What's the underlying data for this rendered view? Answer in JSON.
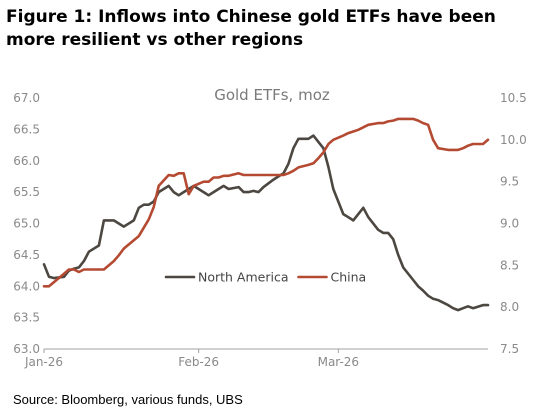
{
  "figure_title": "Figure 1: Inflows into Chinese gold ETFs have been more resilient vs other regions",
  "source": "Source: Bloomberg, various funds, UBS",
  "chart_data": {
    "type": "line",
    "title": "Gold ETFs, moz",
    "x_categories": [
      "Jan-26",
      "Feb-26",
      "Mar-26"
    ],
    "y_left": {
      "min": 63.0,
      "max": 67.0,
      "step": 0.5,
      "ticks": [
        "63.0",
        "63.5",
        "64.0",
        "64.5",
        "65.0",
        "65.5",
        "66.0",
        "66.5",
        "67.0"
      ]
    },
    "y_right": {
      "min": 7.5,
      "max": 10.5,
      "step": 0.5,
      "ticks": [
        "7.5",
        "8.0",
        "8.5",
        "9.0",
        "9.5",
        "10.0",
        "10.5"
      ]
    },
    "grid": false,
    "legend_position": "center-left",
    "series": [
      {
        "name": "North America",
        "color": "#4d4741",
        "axis": "left",
        "x": [
          "Jan-01",
          "Jan-02",
          "Jan-03",
          "Jan-05",
          "Jan-06",
          "Jan-07",
          "Jan-08",
          "Jan-09",
          "Jan-10",
          "Jan-12",
          "Jan-13",
          "Jan-14",
          "Jan-15",
          "Jan-16",
          "Jan-17",
          "Jan-19",
          "Jan-20",
          "Jan-21",
          "Jan-22",
          "Jan-23",
          "Jan-24",
          "Jan-26",
          "Jan-27",
          "Jan-28",
          "Jan-29",
          "Jan-30",
          "Jan-31",
          "Feb-02",
          "Feb-03",
          "Feb-04",
          "Feb-05",
          "Feb-06",
          "Feb-07",
          "Feb-09",
          "Feb-10",
          "Feb-11",
          "Feb-12",
          "Feb-13",
          "Feb-14",
          "Feb-16",
          "Feb-17",
          "Feb-18",
          "Feb-19",
          "Feb-20",
          "Feb-21",
          "Feb-23",
          "Feb-24",
          "Feb-25",
          "Feb-26",
          "Feb-27",
          "Feb-28",
          "Mar-02",
          "Mar-03",
          "Mar-04",
          "Mar-05",
          "Mar-06",
          "Mar-07",
          "Mar-09",
          "Mar-10",
          "Mar-11",
          "Mar-12",
          "Mar-13",
          "Mar-14",
          "Mar-16",
          "Mar-17",
          "Mar-18",
          "Mar-19",
          "Mar-20",
          "Mar-21",
          "Mar-23",
          "Mar-24",
          "Mar-25",
          "Mar-26",
          "Mar-27",
          "Mar-28",
          "Mar-30",
          "Mar-31"
        ],
        "values": [
          64.35,
          64.15,
          64.13,
          64.15,
          64.25,
          64.28,
          64.3,
          64.4,
          64.55,
          64.65,
          65.05,
          65.05,
          65.05,
          65.0,
          64.95,
          65.05,
          65.25,
          65.3,
          65.3,
          65.35,
          65.5,
          65.6,
          65.5,
          65.45,
          65.5,
          65.55,
          65.6,
          65.5,
          65.45,
          65.5,
          65.55,
          65.6,
          65.55,
          65.58,
          65.5,
          65.5,
          65.52,
          65.5,
          65.58,
          65.7,
          65.75,
          65.8,
          65.95,
          66.2,
          66.35,
          66.35,
          66.4,
          66.3,
          66.2,
          65.9,
          65.55,
          65.15,
          65.1,
          65.05,
          65.15,
          65.25,
          65.1,
          64.9,
          64.85,
          64.85,
          64.75,
          64.5,
          64.3,
          64.1,
          64.0,
          63.93,
          63.85,
          63.8,
          63.78,
          63.7,
          63.65,
          63.62,
          63.65,
          63.68,
          63.65,
          63.7,
          63.7
        ]
      },
      {
        "name": "China",
        "color": "#b54a33",
        "axis": "right",
        "x": [
          "Jan-01",
          "Jan-02",
          "Jan-03",
          "Jan-05",
          "Jan-06",
          "Jan-07",
          "Jan-08",
          "Jan-09",
          "Jan-10",
          "Jan-12",
          "Jan-13",
          "Jan-14",
          "Jan-15",
          "Jan-16",
          "Jan-17",
          "Jan-19",
          "Jan-20",
          "Jan-21",
          "Jan-22",
          "Jan-23",
          "Jan-24",
          "Jan-26",
          "Jan-27",
          "Jan-28",
          "Jan-29",
          "Jan-30",
          "Jan-31",
          "Feb-02",
          "Feb-03",
          "Feb-04",
          "Feb-05",
          "Feb-06",
          "Feb-07",
          "Feb-09",
          "Feb-10",
          "Feb-11",
          "Feb-12",
          "Feb-13",
          "Feb-14",
          "Feb-16",
          "Feb-17",
          "Feb-18",
          "Feb-19",
          "Feb-20",
          "Feb-21",
          "Feb-23",
          "Feb-24",
          "Feb-25",
          "Feb-26",
          "Feb-27",
          "Feb-28",
          "Mar-02",
          "Mar-03",
          "Mar-04",
          "Mar-05",
          "Mar-06",
          "Mar-07",
          "Mar-09",
          "Mar-10",
          "Mar-11",
          "Mar-12",
          "Mar-13",
          "Mar-14",
          "Mar-16",
          "Mar-17",
          "Mar-18",
          "Mar-19",
          "Mar-20",
          "Mar-21",
          "Mar-23",
          "Mar-24",
          "Mar-25",
          "Mar-26",
          "Mar-27",
          "Mar-28",
          "Mar-30",
          "Mar-31"
        ],
        "values": [
          8.25,
          8.25,
          8.3,
          8.4,
          8.45,
          8.45,
          8.42,
          8.45,
          8.45,
          8.45,
          8.45,
          8.5,
          8.55,
          8.62,
          8.7,
          8.8,
          8.85,
          8.95,
          9.05,
          9.2,
          9.45,
          9.58,
          9.57,
          9.6,
          9.6,
          9.35,
          9.45,
          9.5,
          9.5,
          9.55,
          9.55,
          9.57,
          9.57,
          9.6,
          9.58,
          9.58,
          9.58,
          9.58,
          9.58,
          9.58,
          9.58,
          9.58,
          9.6,
          9.63,
          9.67,
          9.7,
          9.72,
          9.78,
          9.85,
          9.95,
          10.0,
          10.05,
          10.08,
          10.1,
          10.12,
          10.15,
          10.18,
          10.2,
          10.2,
          10.22,
          10.23,
          10.25,
          10.25,
          10.25,
          10.23,
          10.2,
          10.18,
          10.0,
          9.9,
          9.88,
          9.88,
          9.88,
          9.9,
          9.93,
          9.95,
          9.95,
          10.0
        ]
      }
    ]
  }
}
